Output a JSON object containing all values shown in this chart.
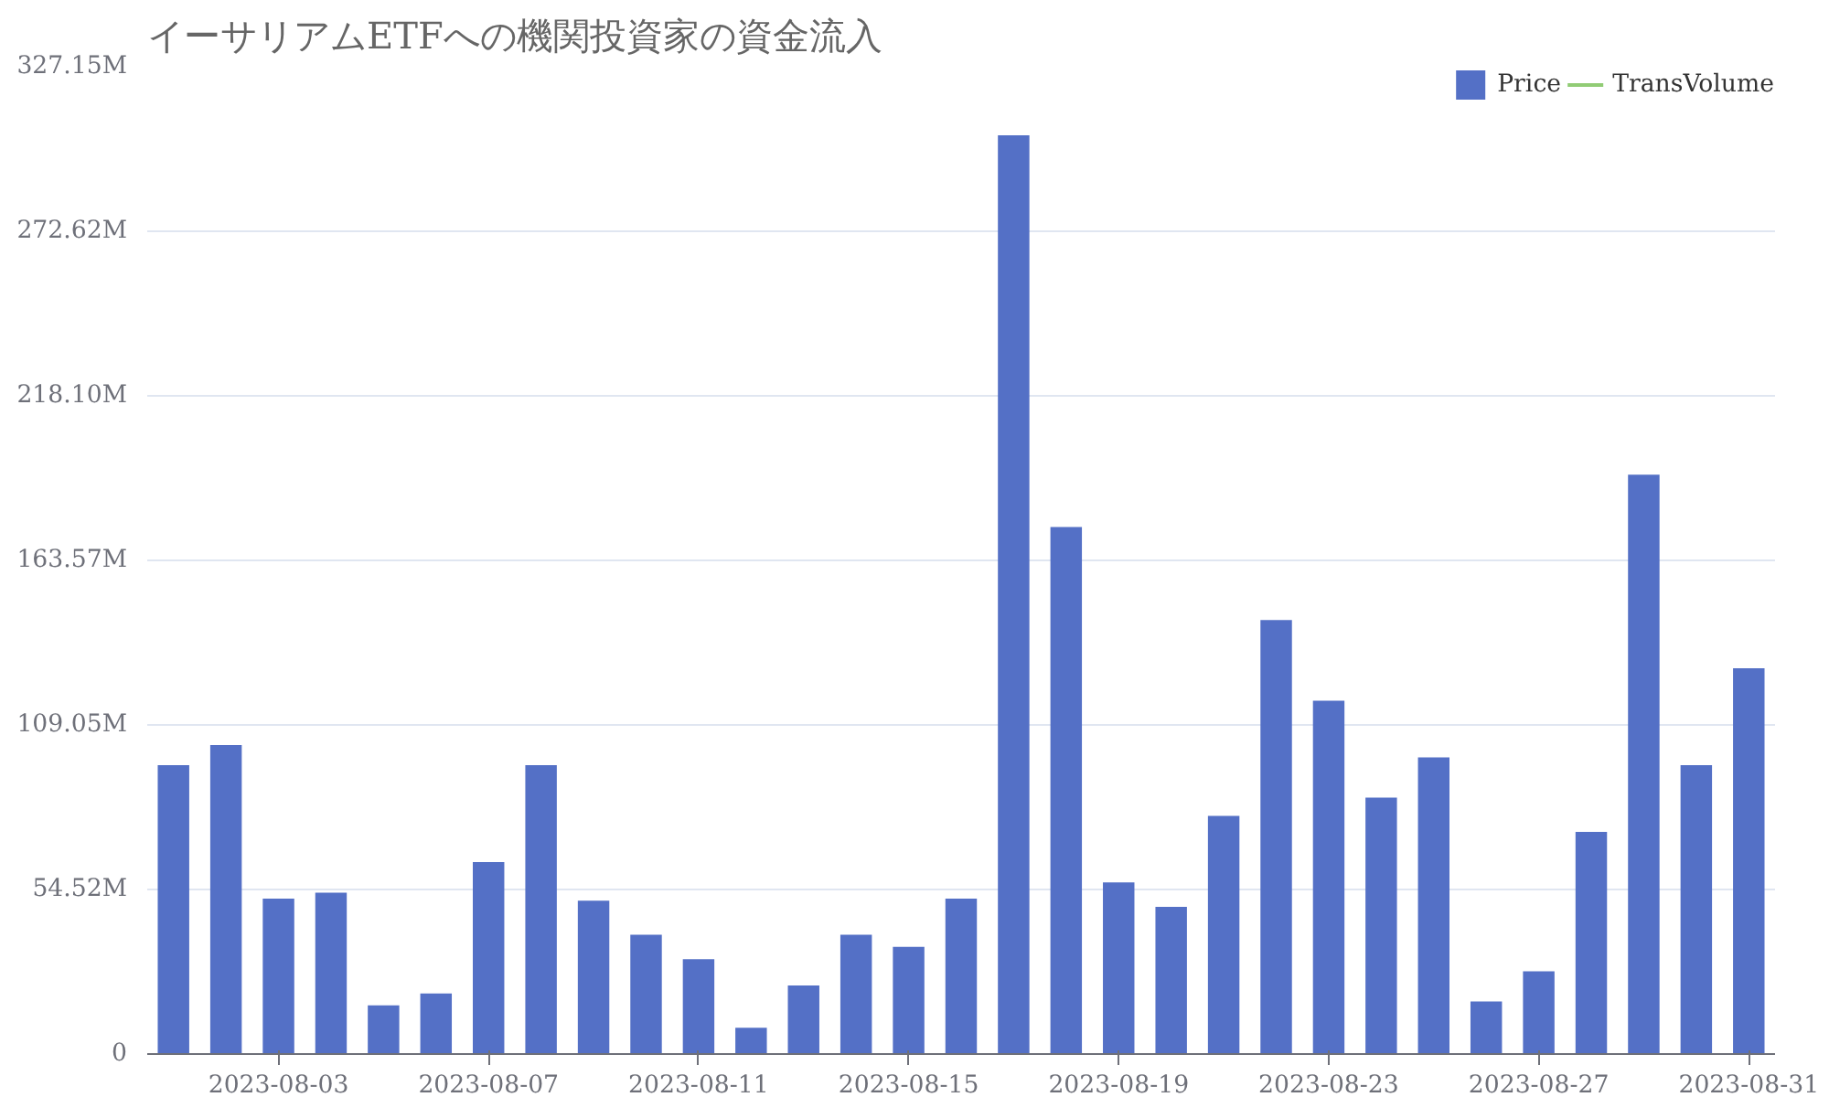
{
  "chart_data": {
    "type": "bar",
    "title": "イーサリアムETFへの機関投資家の資金流入",
    "categories": [
      null,
      null,
      "2023-08-03",
      null,
      null,
      null,
      "2023-08-07",
      null,
      null,
      null,
      "2023-08-11",
      null,
      null,
      null,
      "2023-08-15",
      null,
      null,
      null,
      "2023-08-19",
      null,
      null,
      null,
      "2023-08-23",
      null,
      null,
      null,
      "2023-08-27",
      null,
      null,
      null,
      "2023-08-31"
    ],
    "series": [
      {
        "name": "Price",
        "color": "#5470c6",
        "values": [
          95.7,
          102.4,
          51.5,
          53.5,
          16.1,
          20.1,
          63.6,
          95.7,
          50.8,
          39.5,
          31.4,
          8.7,
          22.7,
          39.5,
          35.5,
          51.5,
          304.4,
          174.6,
          56.9,
          48.8,
          78.9,
          143.8,
          117.1,
          85.0,
          98.3,
          17.4,
          27.4,
          73.6,
          192.0,
          95.7,
          127.8
        ]
      },
      {
        "name": "TransVolume",
        "type": "line",
        "color": "#91cc75",
        "values": [
          null,
          null,
          null,
          null,
          null,
          null,
          null,
          null,
          null,
          null,
          null,
          null,
          null,
          null,
          null,
          null,
          null,
          null,
          null,
          null,
          null,
          null,
          null,
          null,
          null,
          null,
          null,
          null,
          null,
          null,
          null
        ]
      }
    ],
    "ylim": [
      0,
      327.15
    ],
    "yticks": [
      0,
      {
        "value": 54.52,
        "label": "54.52M"
      },
      {
        "value": 109.05,
        "label": "109.05M"
      },
      {
        "value": 163.57,
        "label": "163.57M"
      },
      {
        "value": 218.1,
        "label": "218.10M"
      },
      {
        "value": 272.62,
        "label": "272.62M"
      },
      {
        "value": 327.15,
        "label": "327.15M"
      }
    ],
    "grid": "y",
    "legend": "top right"
  }
}
